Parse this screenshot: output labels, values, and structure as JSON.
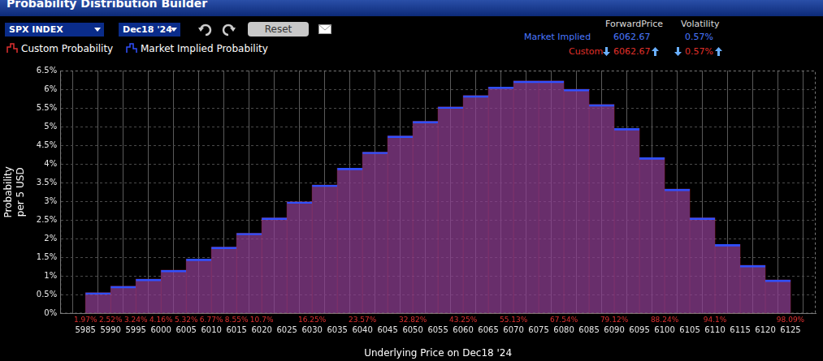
{
  "window_title": "Probability Distribution Builder",
  "toolbar": {
    "underlying": "SPX INDEX",
    "expiry": "Dec18 '24",
    "button": "Reset"
  },
  "summary": {
    "columns": [
      "ForwardPrice",
      "Volatility"
    ],
    "rows": [
      {
        "name": "Market Implied",
        "values": [
          "6062.67",
          "0.57%"
        ],
        "color": "#4a78ff"
      },
      {
        "name": "Custom",
        "values": [
          "6062.67",
          "0.57%"
        ],
        "color": "#e0302a"
      }
    ]
  },
  "chart_data": {
    "type": "histogram",
    "bins": [
      5985,
      5990,
      5995,
      6000,
      6005,
      6010,
      6015,
      6020,
      6025,
      6030,
      6035,
      6040,
      6045,
      6050,
      6055,
      6060,
      6065,
      6070,
      6075,
      6080,
      6085,
      6090,
      6095,
      6100,
      6105,
      6110,
      6115,
      6120,
      6125
    ],
    "series": [
      {
        "name": "Custom Probability",
        "color": "#e03030",
        "values": [
          0.56,
          0.73,
          0.92,
          1.16,
          1.46,
          1.78,
          2.15,
          2.56,
          2.99,
          3.44,
          3.89,
          4.32,
          4.75,
          5.14,
          5.53,
          5.83,
          6.06,
          6.22,
          6.22,
          6.0,
          5.59,
          4.95,
          4.17,
          3.33,
          2.56,
          1.85,
          1.29,
          0.9
        ]
      },
      {
        "name": "Market Implied Probability",
        "color": "#3050ff",
        "values": [
          0.56,
          0.73,
          0.92,
          1.16,
          1.46,
          1.78,
          2.15,
          2.56,
          2.99,
          3.44,
          3.89,
          4.32,
          4.75,
          5.14,
          5.53,
          5.83,
          6.06,
          6.22,
          6.22,
          6.0,
          5.59,
          4.95,
          4.17,
          3.33,
          2.56,
          1.85,
          1.29,
          0.9
        ]
      }
    ],
    "xlabel": "Underlying Price on Dec18 '24",
    "ylabel": [
      "Probability",
      "per 5 USD"
    ],
    "xlim": [
      5980,
      6130
    ],
    "xticks": [
      5985,
      5990,
      5995,
      6000,
      6005,
      6010,
      6015,
      6020,
      6025,
      6030,
      6035,
      6040,
      6045,
      6050,
      6055,
      6060,
      6065,
      6070,
      6075,
      6080,
      6085,
      6090,
      6095,
      6100,
      6105,
      6110,
      6115,
      6120,
      6125
    ],
    "ylim": [
      0,
      6.5
    ],
    "yticks": [
      {
        "value": 0,
        "label": "0%"
      },
      {
        "value": 0.5,
        "label": "0.5%"
      },
      {
        "value": 1,
        "label": "1%"
      },
      {
        "value": 1.5,
        "label": "1.5%"
      },
      {
        "value": 2,
        "label": "2%"
      },
      {
        "value": 2.5,
        "label": "2.5%"
      },
      {
        "value": 3,
        "label": "3%"
      },
      {
        "value": 3.5,
        "label": "3.5%"
      },
      {
        "value": 4,
        "label": "4%"
      },
      {
        "value": 4.5,
        "label": "4.5%"
      },
      {
        "value": 5,
        "label": "5%"
      },
      {
        "value": 5.5,
        "label": "5.5%"
      },
      {
        "value": 6,
        "label": "6%"
      },
      {
        "value": 6.5,
        "label": "6.5%"
      }
    ],
    "grid": true,
    "legend": "top-left",
    "annotations": [
      {
        "x": 5985,
        "text": "1.97%"
      },
      {
        "x": 5990,
        "text": "2.52%"
      },
      {
        "x": 5995,
        "text": "3.24%"
      },
      {
        "x": 6000,
        "text": "4.16%"
      },
      {
        "x": 6005,
        "text": "5.32%"
      },
      {
        "x": 6010,
        "text": "6.77%"
      },
      {
        "x": 6015,
        "text": "8.55%"
      },
      {
        "x": 6020,
        "text": "10.7%"
      },
      {
        "x": 6030,
        "text": "16.25%"
      },
      {
        "x": 6040,
        "text": "23.57%"
      },
      {
        "x": 6050,
        "text": "32.82%"
      },
      {
        "x": 6060,
        "text": "43.25%"
      },
      {
        "x": 6070,
        "text": "55.13%"
      },
      {
        "x": 6080,
        "text": "67.54%"
      },
      {
        "x": 6090,
        "text": "79.12%"
      },
      {
        "x": 6100,
        "text": "88.24%"
      },
      {
        "x": 6110,
        "text": "94.1%"
      },
      {
        "x": 6125,
        "text": "98.09%"
      }
    ]
  }
}
